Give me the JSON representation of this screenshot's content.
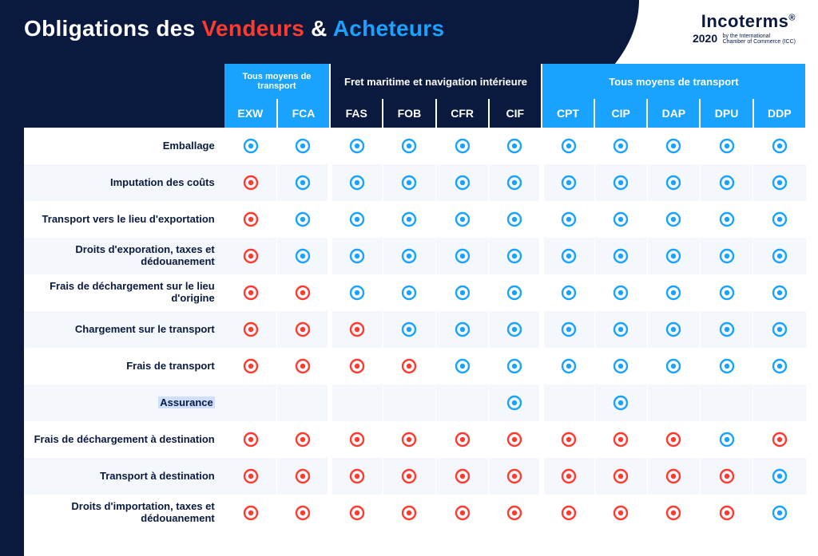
{
  "title": {
    "prefix": "Obligations des ",
    "vendor_word": "Vendeurs",
    "ampersand": " & ",
    "buyer_word": "Acheteurs"
  },
  "logo": {
    "line1": "Incoterms",
    "registered": "®",
    "year": "2020",
    "subtitle1": "by the International",
    "subtitle2": "Chamber of Commerce (ICC)"
  },
  "colors": {
    "navy": "#0a1a3f",
    "bright_blue": "#1aa2ff",
    "seller_blue": "#1aa2ff",
    "buyer_red": "#ff3b30",
    "row_alt": "#f4f8fc",
    "white": "#ffffff",
    "highlight": "#cfe0ff"
  },
  "dot": {
    "outer_radius": 8,
    "inner_radius": 3.2,
    "stroke_width": 2.4
  },
  "groups": [
    {
      "label": "Tous moyens de transport",
      "span": 2,
      "style": "bright",
      "small": true
    },
    {
      "label": "Fret maritime et navigation intérieure",
      "span": 4,
      "style": "dark"
    },
    {
      "label": "Tous moyens de transport",
      "span": 5,
      "style": "bright"
    }
  ],
  "columns": [
    {
      "code": "EXW",
      "style": "bright"
    },
    {
      "code": "FCA",
      "style": "bright"
    },
    {
      "code": "FAS",
      "style": "dark"
    },
    {
      "code": "FOB",
      "style": "dark"
    },
    {
      "code": "CFR",
      "style": "dark"
    },
    {
      "code": "CIF",
      "style": "dark"
    },
    {
      "code": "CPT",
      "style": "bright"
    },
    {
      "code": "CIP",
      "style": "bright"
    },
    {
      "code": "DAP",
      "style": "bright"
    },
    {
      "code": "DPU",
      "style": "bright"
    },
    {
      "code": "DDP",
      "style": "bright"
    }
  ],
  "rows": [
    {
      "label": "Emballage",
      "cells": [
        "S",
        "S",
        "S",
        "S",
        "S",
        "S",
        "S",
        "S",
        "S",
        "S",
        "S"
      ]
    },
    {
      "label": "Imputation des coûts",
      "cells": [
        "B",
        "S",
        "S",
        "S",
        "S",
        "S",
        "S",
        "S",
        "S",
        "S",
        "S"
      ]
    },
    {
      "label": "Transport vers le lieu d'exportation",
      "cells": [
        "B",
        "S",
        "S",
        "S",
        "S",
        "S",
        "S",
        "S",
        "S",
        "S",
        "S"
      ]
    },
    {
      "label": "Droits d'exporation, taxes et dédouanement",
      "cells": [
        "B",
        "S",
        "S",
        "S",
        "S",
        "S",
        "S",
        "S",
        "S",
        "S",
        "S"
      ]
    },
    {
      "label": "Frais de déchargement sur le lieu d'origine",
      "cells": [
        "B",
        "B",
        "S",
        "S",
        "S",
        "S",
        "S",
        "S",
        "S",
        "S",
        "S"
      ]
    },
    {
      "label": "Chargement sur le transport",
      "cells": [
        "B",
        "B",
        "B",
        "S",
        "S",
        "S",
        "S",
        "S",
        "S",
        "S",
        "S"
      ]
    },
    {
      "label": "Frais de transport",
      "cells": [
        "B",
        "B",
        "B",
        "B",
        "S",
        "S",
        "S",
        "S",
        "S",
        "S",
        "S"
      ]
    },
    {
      "label": "Assurance",
      "highlight": true,
      "cells": [
        "",
        "",
        "",
        "",
        "",
        "S",
        "",
        "S",
        "",
        "",
        ""
      ]
    },
    {
      "label": "Frais de déchargement à destination",
      "cells": [
        "B",
        "B",
        "B",
        "B",
        "B",
        "B",
        "B",
        "B",
        "B",
        "S",
        "B"
      ]
    },
    {
      "label": "Transport à destination",
      "cells": [
        "B",
        "B",
        "B",
        "B",
        "B",
        "B",
        "B",
        "B",
        "B",
        "B",
        "S"
      ]
    },
    {
      "label": "Droits d'importation, taxes et dédouanement",
      "cells": [
        "B",
        "B",
        "B",
        "B",
        "B",
        "B",
        "B",
        "B",
        "B",
        "B",
        "S"
      ]
    }
  ]
}
